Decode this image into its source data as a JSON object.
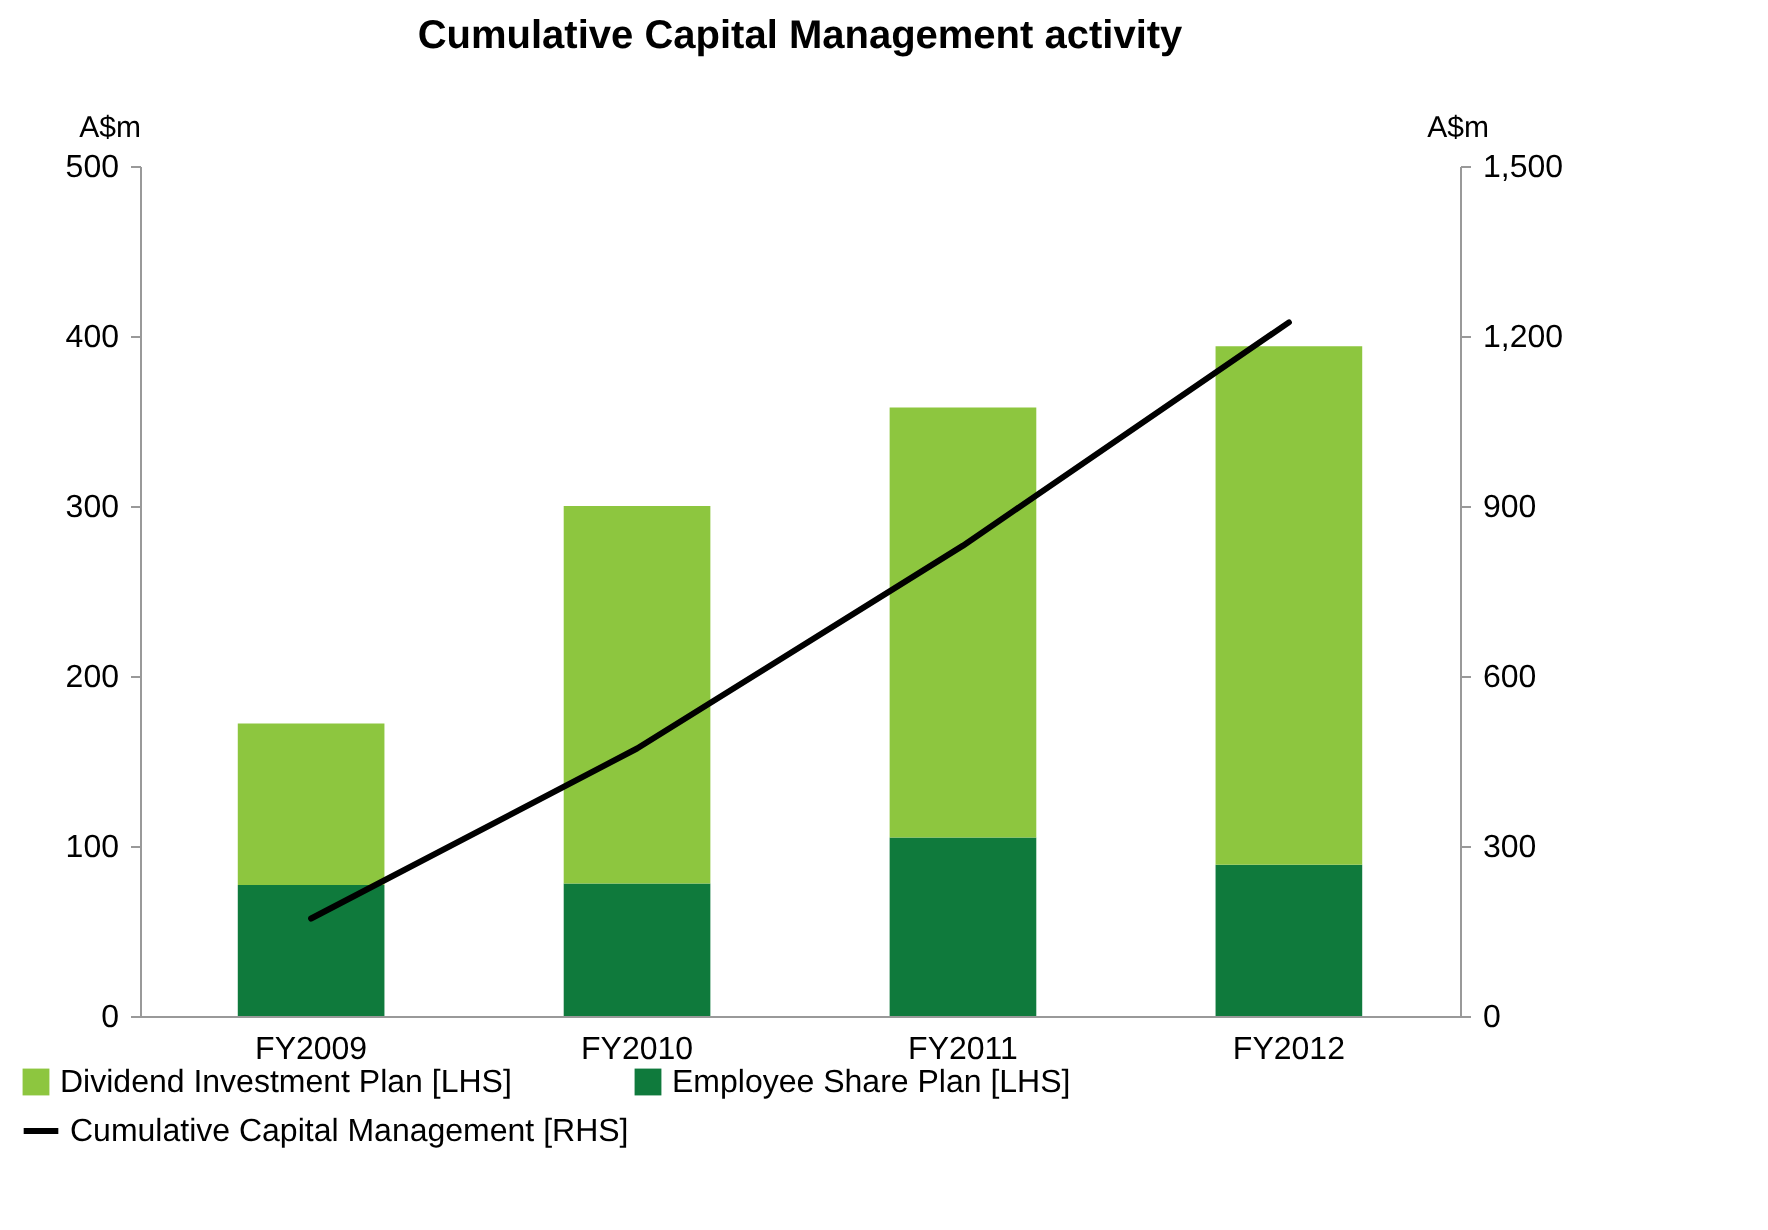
{
  "chart_data": {
    "type": "bar",
    "title": "Cumulative Capital Management activity",
    "ylabel": "A$m",
    "y2label": "A$m",
    "categories": [
      "FY2009",
      "FY2010",
      "FY2011",
      "FY2012"
    ],
    "stacked": true,
    "series": [
      {
        "name": "Employee Share Plan [LHS]",
        "color": "#0f7a3c",
        "values": [
          77,
          78,
          105,
          89
        ]
      },
      {
        "name": "Dividend Investment Plan [LHS]",
        "color": "#8dc63f",
        "values": [
          95,
          222,
          253,
          305
        ]
      },
      {
        "name": "Cumulative Capital Management [RHS]",
        "type": "line",
        "axis": "y2",
        "color": "#000000",
        "values": [
          172,
          472,
          830,
          1224
        ]
      }
    ],
    "ylim": [
      0,
      500
    ],
    "yticks": [
      0,
      100,
      200,
      300,
      400,
      500
    ],
    "y2lim": [
      0,
      1500
    ],
    "y2ticks": [
      0,
      {
        "value": 300,
        "label": "300"
      },
      {
        "value": 600,
        "label": "600"
      },
      {
        "value": 900,
        "label": "900"
      },
      {
        "value": 1200,
        "label": "1,200"
      },
      {
        "value": 1500,
        "label": "1,500"
      }
    ],
    "grid": false,
    "legend": "bottom"
  }
}
